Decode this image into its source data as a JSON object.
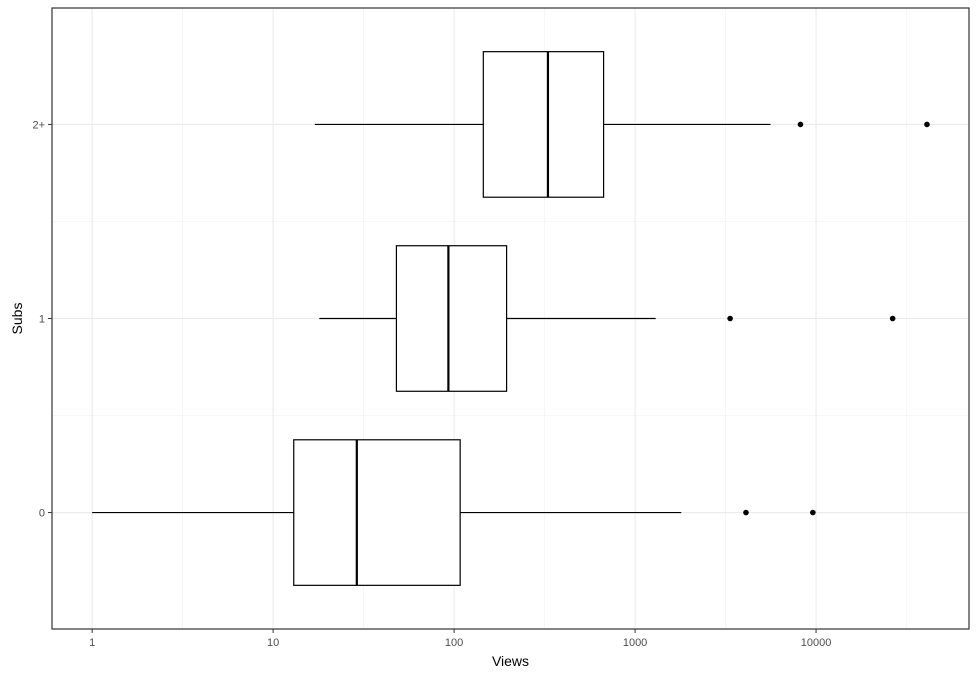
{
  "chart_data": {
    "type": "boxplot",
    "orientation": "horizontal",
    "xlabel": "Views",
    "ylabel": "Subs",
    "x_scale": "log10",
    "xlim": [
      0.6,
      70000
    ],
    "x_ticks": [
      {
        "value": 1,
        "label": "1"
      },
      {
        "value": 10,
        "label": "10"
      },
      {
        "value": 100,
        "label": "100"
      },
      {
        "value": 1000,
        "label": "1000"
      },
      {
        "value": 10000,
        "label": "10000"
      }
    ],
    "x_minor_ticks": [
      3.16,
      31.6,
      316,
      3162,
      31623
    ],
    "categories": [
      "0",
      "1",
      "2+"
    ],
    "grid": true,
    "theme": "bw",
    "colors": {
      "box_fill": "#ffffff",
      "line": "#000000",
      "grid_major": "#ebebeb",
      "grid_minor": "#f5f5f5",
      "panel_border": "#333333"
    },
    "boxes": [
      {
        "category": "0",
        "whisker_low": 1,
        "q1": 13,
        "median": 29,
        "q3": 108,
        "whisker_high": 1800,
        "outliers": [
          4100,
          9600
        ]
      },
      {
        "category": "1",
        "whisker_low": 18,
        "q1": 48,
        "median": 93,
        "q3": 195,
        "whisker_high": 1300,
        "outliers": [
          3350,
          26500
        ]
      },
      {
        "category": "2+",
        "whisker_low": 17,
        "q1": 145,
        "median": 330,
        "q3": 670,
        "whisker_high": 5600,
        "outliers": [
          8200,
          41000
        ]
      }
    ]
  }
}
